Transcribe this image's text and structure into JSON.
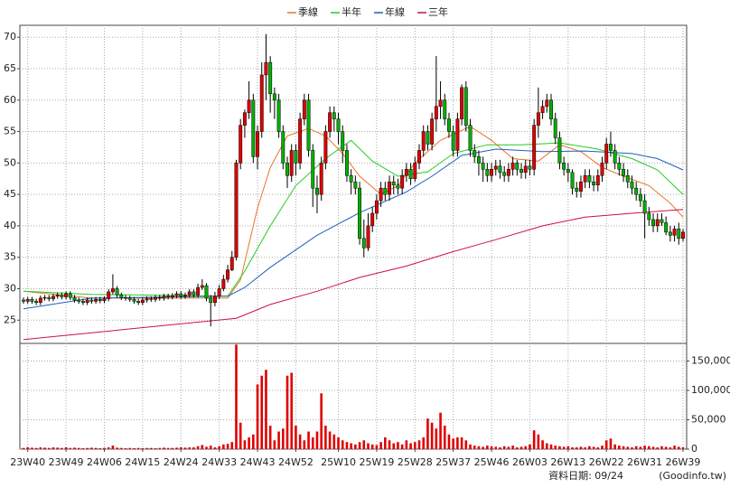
{
  "chart_data": {
    "type": "candlestick",
    "legend": "top",
    "grid": true,
    "categories": [
      null,
      "23W40",
      null,
      null,
      null,
      null,
      null,
      null,
      null,
      null,
      "23W49",
      null,
      null,
      null,
      null,
      null,
      null,
      null,
      null,
      "24W06",
      null,
      null,
      null,
      null,
      null,
      null,
      null,
      null,
      "24W15",
      null,
      null,
      null,
      null,
      null,
      null,
      null,
      null,
      "24W24",
      null,
      null,
      null,
      null,
      null,
      null,
      null,
      null,
      "24W33",
      null,
      null,
      null,
      null,
      null,
      null,
      null,
      null,
      "24W43",
      null,
      null,
      null,
      null,
      null,
      null,
      null,
      null,
      "24W52",
      null,
      null,
      null,
      null,
      null,
      null,
      null,
      null,
      null,
      "25W10",
      null,
      null,
      null,
      null,
      null,
      null,
      null,
      null,
      "25W19",
      null,
      null,
      null,
      null,
      null,
      null,
      null,
      null,
      "25W28",
      null,
      null,
      null,
      null,
      null,
      null,
      null,
      null,
      "25W37",
      null,
      null,
      null,
      null,
      null,
      null,
      null,
      null,
      "25W46",
      null,
      null,
      null,
      null,
      null,
      null,
      null,
      null,
      "26W03",
      null,
      null,
      null,
      null,
      null,
      null,
      null,
      null,
      "26W13",
      null,
      null,
      null,
      null,
      null,
      null,
      null,
      null,
      "26W22",
      null,
      null,
      null,
      null,
      null,
      null,
      null,
      null,
      "26W31",
      null,
      null,
      null,
      null,
      null,
      null,
      null,
      null,
      "26W39"
    ],
    "open": [
      28.2,
      28,
      28.3,
      28,
      27.8,
      28.5,
      28.6,
      28.4,
      28.8,
      29,
      28.7,
      29.2,
      28.6,
      28.2,
      28,
      27.8,
      28.2,
      28,
      28.3,
      28.1,
      28.4,
      29.5,
      30,
      29,
      28.6,
      28.5,
      28.3,
      28,
      27.8,
      28.2,
      28.4,
      28.3,
      28.6,
      28.5,
      28.8,
      28.7,
      28.9,
      29.2,
      28.8,
      29,
      29.5,
      29,
      30.2,
      30.5,
      28.5,
      27.8,
      28.8,
      30,
      31.5,
      33,
      35,
      50,
      56,
      58,
      60,
      51,
      55,
      64,
      66,
      61,
      60,
      55,
      50,
      48,
      52,
      50,
      57,
      60,
      52,
      46,
      45,
      50,
      55,
      58,
      57,
      55,
      52,
      48,
      47,
      46,
      38,
      36.5,
      40,
      42,
      44,
      46,
      45,
      47,
      46.5,
      46,
      48,
      49,
      47.5,
      50,
      52,
      55,
      53,
      57,
      59,
      60,
      57,
      55,
      52,
      57,
      62,
      56,
      52,
      51,
      50,
      49,
      48,
      49,
      49.5,
      48.5,
      48,
      49,
      50,
      49,
      48.5,
      49.5,
      49,
      56,
      58,
      59,
      60,
      57,
      54,
      50,
      49,
      48.5,
      46,
      45.5,
      47,
      48,
      47,
      46.5,
      48,
      50,
      53,
      52,
      50,
      49,
      48,
      47,
      46,
      45,
      44,
      42,
      41,
      40,
      41,
      40.5,
      39,
      38.5,
      39.5,
      38
    ],
    "high": [
      28.6,
      28.7,
      28.7,
      28.4,
      28.9,
      29,
      29,
      29.2,
      29.4,
      29.4,
      29.6,
      29.6,
      29,
      28.6,
      28.4,
      28.6,
      28.6,
      28.7,
      28.7,
      28.8,
      29.9,
      32.3,
      30.4,
      29.4,
      29,
      28.9,
      28.7,
      28.4,
      28.6,
      28.8,
      28.8,
      29,
      29,
      29.2,
      29.2,
      29.3,
      29.6,
      29.6,
      29.4,
      29.9,
      29.9,
      30.8,
      31.5,
      30.9,
      29,
      29.5,
      30.6,
      32.2,
      33.8,
      36,
      50.5,
      57,
      58.5,
      63,
      61,
      56,
      66,
      70.5,
      67,
      62,
      61,
      56,
      51,
      53,
      53,
      58,
      61,
      61,
      53,
      48,
      51,
      56,
      59,
      59,
      58,
      56,
      53,
      49,
      48,
      47,
      41,
      42,
      43,
      45,
      47,
      47,
      48,
      48,
      47.5,
      49,
      50,
      50,
      51,
      53,
      56,
      56,
      58,
      67,
      63,
      61,
      58,
      56,
      58,
      62.5,
      63,
      57,
      53,
      52,
      51,
      50,
      50,
      50.5,
      50.5,
      49.5,
      50,
      51,
      50.5,
      50,
      50.5,
      50.5,
      57,
      62,
      60,
      61,
      61,
      58,
      55,
      51,
      50,
      49,
      47,
      48,
      49,
      49,
      48,
      49,
      51,
      54,
      55,
      53,
      51,
      50,
      49,
      48,
      47,
      46,
      45,
      43,
      42,
      42,
      42,
      41.5,
      40,
      40,
      40.5,
      39.5
    ],
    "low": [
      27.6,
      27.6,
      27.6,
      27.4,
      27.4,
      28.1,
      28,
      28,
      28.4,
      28.3,
      28.3,
      28.2,
      27.8,
      27.6,
      27.4,
      27.4,
      27.6,
      27.6,
      27.7,
      27.7,
      28,
      29.1,
      28.6,
      28.2,
      28.1,
      27.9,
      27.6,
      27.4,
      27.4,
      27.8,
      27.9,
      27.9,
      28.1,
      28.1,
      28.3,
      28.3,
      28.5,
      28.4,
      28.4,
      28.6,
      28.6,
      28.6,
      29.8,
      28,
      24,
      27.2,
      28.4,
      29.6,
      31,
      32.8,
      34.5,
      49,
      54,
      57,
      50,
      49,
      54,
      60,
      58,
      57,
      54,
      49,
      46,
      47,
      48,
      49,
      56,
      51,
      43,
      42,
      44,
      49,
      54,
      55,
      53,
      50,
      47,
      45,
      45,
      37,
      35,
      36,
      39,
      41,
      43,
      44,
      44,
      45,
      45,
      45,
      47,
      46.5,
      47,
      49,
      51,
      52,
      52,
      55,
      57,
      56,
      54,
      51,
      51,
      56,
      55,
      51,
      50,
      48,
      47,
      47,
      47,
      48,
      47.5,
      47,
      47,
      48,
      48,
      47.5,
      47.5,
      48,
      48,
      54,
      57,
      58,
      56,
      53,
      49,
      48,
      47,
      45,
      44.5,
      44.5,
      46,
      46,
      45.5,
      45.5,
      47,
      49,
      51,
      49,
      48,
      47,
      46,
      45,
      44,
      43,
      38,
      40,
      39,
      39,
      40,
      38.5,
      37.5,
      37.5,
      37,
      37.5
    ],
    "close": [
      28,
      28.3,
      28,
      27.8,
      28.5,
      28.6,
      28.4,
      28.8,
      29,
      28.7,
      29.2,
      28.6,
      28.2,
      28,
      27.8,
      28.2,
      28,
      28.3,
      28.1,
      28.4,
      29.5,
      30,
      29,
      28.6,
      28.5,
      28.3,
      28,
      27.8,
      28.2,
      28.4,
      28.3,
      28.6,
      28.5,
      28.8,
      28.7,
      28.9,
      29.2,
      28.8,
      29,
      29.5,
      29,
      30.2,
      30.5,
      28.5,
      27.8,
      28.8,
      30,
      31.5,
      33,
      35,
      50,
      56,
      58,
      60,
      51,
      55,
      64,
      66,
      61,
      60,
      55,
      50,
      48,
      52,
      50,
      57,
      60,
      52,
      46,
      45,
      50,
      55,
      58,
      57,
      55,
      52,
      48,
      47,
      46,
      38,
      36.5,
      40,
      42,
      44,
      46,
      45,
      47,
      46.5,
      46,
      48,
      49,
      47.5,
      50,
      52,
      55,
      53,
      57,
      59,
      60,
      57,
      55,
      52,
      57,
      62,
      56,
      52,
      51,
      50,
      49,
      48,
      49,
      49.5,
      48.5,
      48,
      49,
      50,
      49,
      48.5,
      49.5,
      49,
      56,
      58,
      59,
      60,
      57,
      54,
      50,
      49,
      48.5,
      46,
      45.5,
      47,
      48,
      47,
      46.5,
      48,
      50,
      53,
      52,
      50,
      49,
      48,
      47,
      46,
      45,
      44,
      42,
      41,
      40,
      41,
      40.5,
      39,
      38.5,
      39.5,
      38,
      39
    ],
    "up_color": "#e00000",
    "down_color": "#00b000",
    "ylim": [
      21.3,
      71.9
    ],
    "yticks": [
      25,
      30,
      35,
      40,
      45,
      50,
      55,
      60,
      65,
      70
    ],
    "lines": [
      {
        "name": "季線",
        "color": "#e8742a",
        "x": [
          0,
          16,
          48,
          51,
          55,
          58,
          62,
          67,
          71,
          75,
          79,
          84,
          88,
          92,
          98,
          105,
          110,
          115,
          121,
          126,
          131,
          136,
          141,
          147,
          152,
          155
        ],
        "values": [
          29.6,
          28.5,
          28.5,
          31.4,
          42.8,
          49.3,
          54.3,
          55.5,
          54.3,
          51.5,
          47.9,
          45,
          46.4,
          50,
          53.6,
          55.8,
          53.6,
          50.7,
          50.3,
          52.9,
          51.8,
          49.3,
          47.9,
          46.4,
          43.6,
          41.4
        ]
      },
      {
        "name": "半年",
        "color": "#22cc22",
        "x": [
          0,
          16,
          48,
          52,
          58,
          64,
          71,
          77,
          82,
          88,
          95,
          101,
          109,
          117,
          126,
          135,
          143,
          149,
          155
        ],
        "values": [
          29.6,
          29.1,
          28.8,
          32.8,
          40,
          46.4,
          50.7,
          53.6,
          50.3,
          47.9,
          48.6,
          51.5,
          52.9,
          52.9,
          53.2,
          52.2,
          50.7,
          48.9,
          45
        ]
      },
      {
        "name": "年線",
        "color": "#1f5fbf",
        "x": [
          0,
          16,
          48,
          52,
          58,
          69,
          79,
          90,
          96,
          103,
          111,
          122,
          132,
          143,
          149,
          155
        ],
        "values": [
          26.8,
          28.5,
          28.8,
          30.2,
          33.4,
          38.5,
          42.1,
          45.4,
          47.9,
          51.2,
          52.2,
          51.8,
          51.9,
          51.5,
          50.7,
          48.9
        ]
      },
      {
        "name": "三年",
        "color": "#cc1144",
        "x": [
          0,
          50,
          58,
          69,
          79,
          90,
          101,
          111,
          122,
          132,
          143,
          155
        ],
        "values": [
          21.9,
          25.3,
          27.5,
          29.6,
          31.8,
          33.6,
          35.9,
          37.8,
          40,
          41.4,
          42,
          42.6
        ]
      }
    ],
    "volume": {
      "color": "#e00000",
      "ylim": [
        0,
        180000
      ],
      "yticks": [
        0,
        {
          "value": 50000,
          "label": "50,000"
        },
        {
          "value": 100000,
          "label": "100,000"
        },
        {
          "value": 150000,
          "label": "150,000"
        }
      ],
      "values": [
        2000,
        3000,
        2500,
        2000,
        3000,
        2500,
        2000,
        3000,
        2500,
        2000,
        3000,
        2000,
        2500,
        2000,
        1500,
        2000,
        2500,
        2000,
        1500,
        2000,
        3000,
        6000,
        2500,
        2000,
        1500,
        2000,
        1500,
        2000,
        1500,
        2000,
        2000,
        1500,
        2000,
        2500,
        2000,
        2000,
        2500,
        3000,
        2500,
        3000,
        3000,
        5000,
        7000,
        4000,
        6000,
        3000,
        5000,
        8000,
        9000,
        12000,
        178000,
        45000,
        15000,
        20000,
        25000,
        110000,
        125000,
        135000,
        40000,
        15000,
        30000,
        35000,
        125000,
        130000,
        40000,
        25000,
        15000,
        30000,
        20000,
        30000,
        95000,
        40000,
        30000,
        25000,
        20000,
        15000,
        12000,
        10000,
        8000,
        12000,
        15000,
        10000,
        8000,
        7000,
        12000,
        20000,
        15000,
        10000,
        12000,
        8000,
        15000,
        10000,
        12000,
        15000,
        20000,
        52000,
        45000,
        35000,
        62000,
        40000,
        25000,
        18000,
        20000,
        20000,
        15000,
        8000,
        6000,
        5000,
        4000,
        6000,
        5000,
        4000,
        3000,
        5000,
        4000,
        6000,
        3000,
        4000,
        5000,
        8000,
        32000,
        25000,
        15000,
        10000,
        8000,
        6000,
        5000,
        4000,
        5000,
        3000,
        3000,
        4000,
        3000,
        5000,
        4000,
        3000,
        6000,
        15000,
        18000,
        8000,
        6000,
        5000,
        4000,
        3000,
        5000,
        4000,
        6000,
        5000,
        4000,
        3000,
        5000,
        4000,
        3000,
        6000,
        4000,
        3000
      ]
    },
    "footer": {
      "date": "資料日期: 09/24",
      "source": "(Goodinfo.tw)"
    }
  }
}
